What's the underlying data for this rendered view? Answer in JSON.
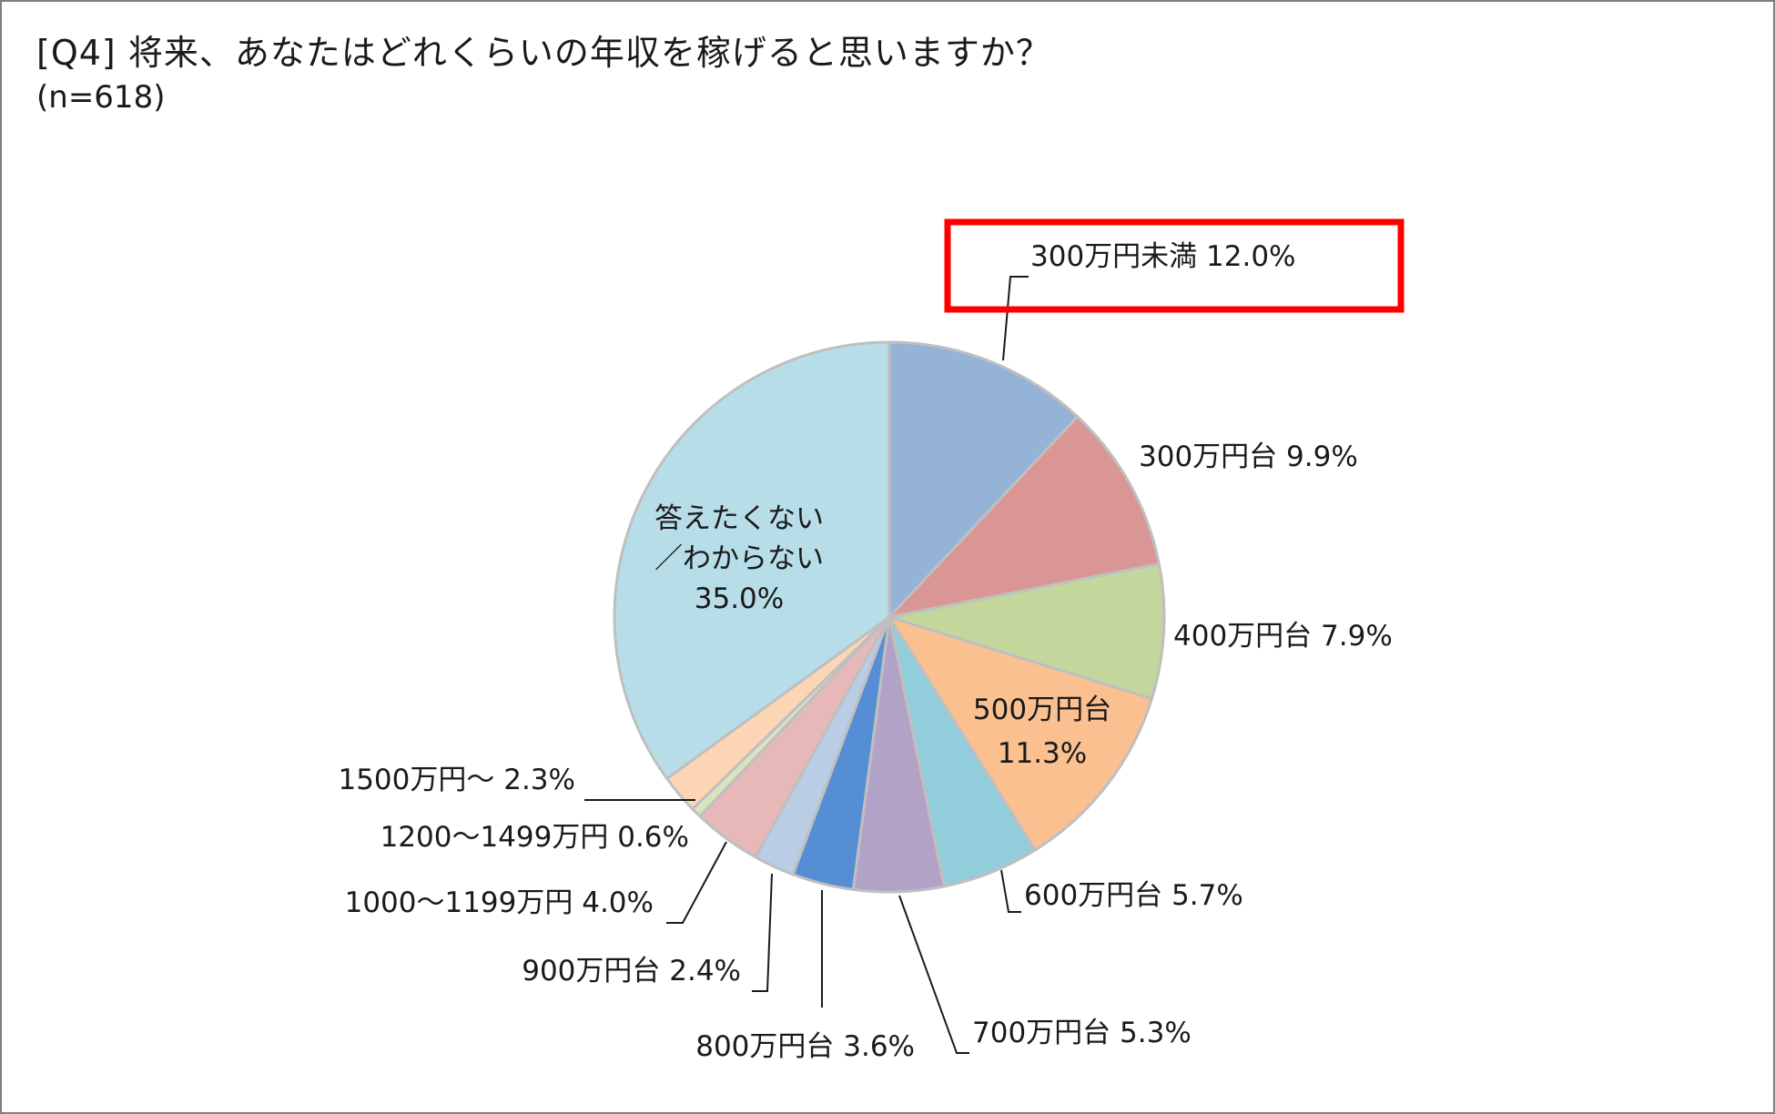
{
  "title": "[Q4] 将来、あなたはどれくらいの年収を稼げると思いますか？",
  "subtitle": "(n=618)",
  "highlight_color": "#ff0000",
  "chart_data": {
    "type": "pie",
    "title": "[Q4] 将来、あなたはどれくらいの年収を稼げると思いますか？",
    "start": "12 o'clock, clockwise",
    "highlighted": "300万円未満",
    "series": [
      {
        "slices": [
          {
            "label": "300万円未満",
            "value": 12.0,
            "value_text": "12.0%",
            "color": "#95b3d7"
          },
          {
            "label": "300万円台",
            "value": 9.9,
            "value_text": "9.9%",
            "color": "#d99694"
          },
          {
            "label": "400万円台",
            "value": 7.9,
            "value_text": "7.9%",
            "color": "#c3d69b"
          },
          {
            "label": "500万円台",
            "value": 11.3,
            "value_text": "11.3%",
            "color": "#fac090"
          },
          {
            "label": "600万円台",
            "value": 5.7,
            "value_text": "5.7%",
            "color": "#92cddc"
          },
          {
            "label": "700万円台",
            "value": 5.3,
            "value_text": "5.3%",
            "color": "#b2a2c7"
          },
          {
            "label": "800万円台",
            "value": 3.6,
            "value_text": "3.6%",
            "color": "#558ed5"
          },
          {
            "label": "900万円台",
            "value": 2.4,
            "value_text": "2.4%",
            "color": "#b9cde5"
          },
          {
            "label": "1000～1199万円",
            "value": 4.0,
            "value_text": "4.0%",
            "color": "#e6b9b8"
          },
          {
            "label": "1200～1499万円",
            "value": 0.6,
            "value_text": "0.6%",
            "color": "#d7e4bd"
          },
          {
            "label": "1500万円～",
            "value": 2.3,
            "value_text": "2.3%",
            "color": "#fcd5b5"
          },
          {
            "label": "答えたくない／わからない",
            "label_lines": [
              "答えたくない",
              "／わからない"
            ],
            "value": 35.0,
            "value_text": "35.0%",
            "color": "#b7dde8"
          }
        ]
      }
    ]
  }
}
